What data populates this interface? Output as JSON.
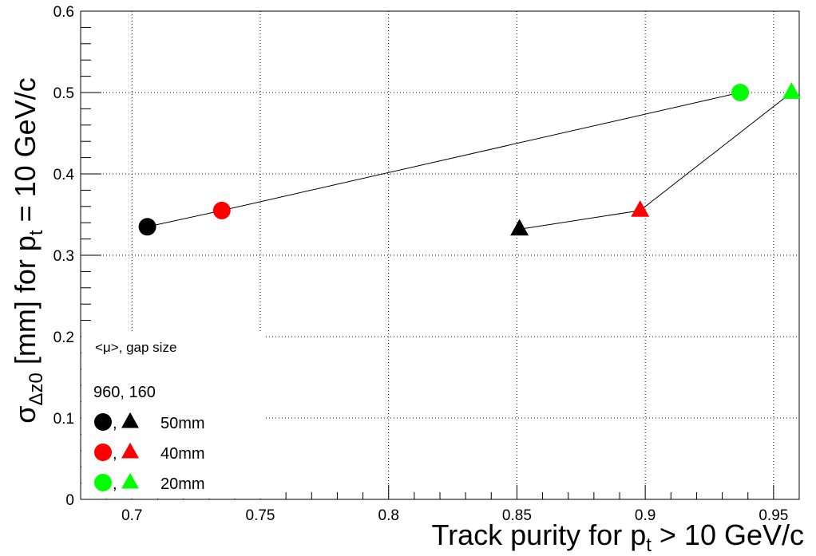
{
  "chart_data": {
    "type": "scatter",
    "title": "",
    "xlabel": {
      "main": "Track purity for p",
      "sub": "t",
      "tail": " > 10 GeV/c"
    },
    "ylabel": {
      "sigma": "σ",
      "sigma_sub": "Δz0",
      "mid": " [mm] for p",
      "p_sub": "t",
      "tail": " = 10 GeV/c"
    },
    "xlim": [
      0.68,
      0.96
    ],
    "ylim": [
      0,
      0.6
    ],
    "x_ticks": [
      0.7,
      0.75,
      0.8,
      0.85,
      0.9,
      0.95
    ],
    "x_tick_labels": [
      "0.7",
      "0.75",
      "0.8",
      "0.85",
      "0.9",
      "0.95"
    ],
    "y_ticks": [
      0,
      0.1,
      0.2,
      0.3,
      0.4,
      0.5,
      0.6
    ],
    "y_tick_labels": [
      "0",
      "0.1",
      "0.2",
      "0.3",
      "0.4",
      "0.5",
      "0.6"
    ],
    "grid": true,
    "series": [
      {
        "name": "<μ> = 960",
        "marker": "circle",
        "points": [
          {
            "x": 0.706,
            "y": 0.335,
            "color": "#000000"
          },
          {
            "x": 0.735,
            "y": 0.355,
            "color": "#ff0000"
          },
          {
            "x": 0.937,
            "y": 0.5,
            "color": "#00ff00"
          }
        ]
      },
      {
        "name": "<μ> = 160",
        "marker": "triangle",
        "points": [
          {
            "x": 0.851,
            "y": 0.332,
            "color": "#000000"
          },
          {
            "x": 0.898,
            "y": 0.355,
            "color": "#ff0000"
          },
          {
            "x": 0.957,
            "y": 0.5,
            "color": "#00ff00"
          }
        ]
      }
    ],
    "legend": {
      "position": "bottom-left",
      "header": "<μ>,  gap size",
      "subheader": "960, 160",
      "entries": [
        {
          "label": "50mm",
          "color": "#000000"
        },
        {
          "label": "40mm",
          "color": "#ff0000"
        },
        {
          "label": "20mm",
          "color": "#00ff00"
        }
      ],
      "separator": ","
    }
  }
}
